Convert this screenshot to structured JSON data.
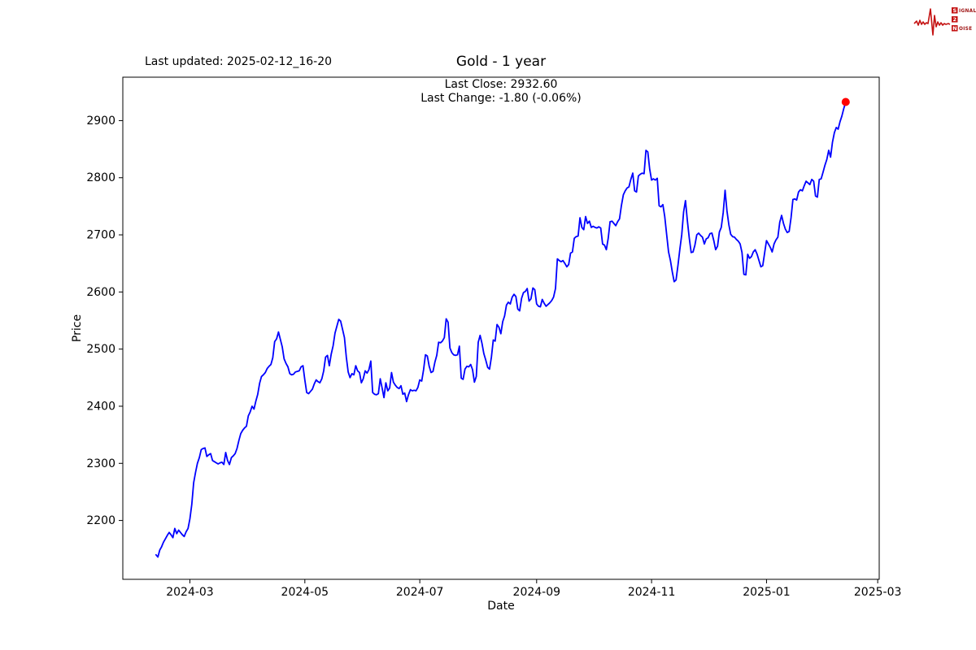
{
  "header": {
    "last_updated": "Last updated: 2025-02-12_16-20",
    "title": "Gold - 1 year",
    "last_close": "Last Close: 2932.60",
    "last_change": "Last Change: -1.80 (-0.06%)"
  },
  "logo": {
    "word_top": "SIGNAL",
    "word_mid": "2",
    "word_bottom": "NOISE",
    "accent_color": "#c41212",
    "text_color": "#9e1313"
  },
  "chart_data": {
    "type": "line",
    "title": "Gold - 1 year",
    "xlabel": "Date",
    "ylabel": "Price",
    "instrument": "Gold",
    "period": "1 year",
    "last_close": 2932.6,
    "last_change": -1.8,
    "last_change_pct": -0.06,
    "line_color": "#0000ff",
    "marker_color": "#ff0000",
    "grid": false,
    "x_start_date": "2024-02-12",
    "x_end_date": "2025-02-12",
    "frequency": "daily",
    "x_tick_days": [
      18,
      79,
      140,
      202,
      263,
      324,
      383
    ],
    "x_tick_labels": [
      "2024-03",
      "2024-05",
      "2024-07",
      "2024-09",
      "2024-11",
      "2025-01",
      "2025-03"
    ],
    "y_ticks": [
      2200,
      2300,
      2400,
      2500,
      2600,
      2700,
      2800,
      2900
    ],
    "xlim_days": [
      -17.6,
      383.8
    ],
    "ylim": [
      2097,
      2976
    ],
    "series": [
      {
        "name": "Gold price",
        "prices": [
          2140,
          2136,
          2148,
          2154,
          2162,
          2168,
          2174,
          2179,
          2175,
          2170,
          2186,
          2177,
          2183,
          2179,
          2175,
          2172,
          2180,
          2186,
          2203,
          2228,
          2266,
          2284,
          2300,
          2310,
          2324,
          2326,
          2327,
          2312,
          2315,
          2317,
          2305,
          2303,
          2301,
          2299,
          2301,
          2302,
          2298,
          2319,
          2305,
          2298,
          2310,
          2313,
          2317,
          2326,
          2340,
          2352,
          2358,
          2362,
          2365,
          2383,
          2390,
          2400,
          2395,
          2409,
          2421,
          2440,
          2452,
          2455,
          2459,
          2466,
          2470,
          2473,
          2485,
          2513,
          2518,
          2530,
          2517,
          2504,
          2483,
          2475,
          2469,
          2457,
          2455,
          2456,
          2460,
          2461,
          2462,
          2469,
          2471,
          2446,
          2424,
          2422,
          2426,
          2430,
          2439,
          2446,
          2443,
          2441,
          2448,
          2462,
          2486,
          2489,
          2471,
          2491,
          2506,
          2528,
          2540,
          2552,
          2549,
          2535,
          2520,
          2486,
          2460,
          2450,
          2457,
          2455,
          2471,
          2462,
          2459,
          2441,
          2448,
          2462,
          2458,
          2464,
          2479,
          2424,
          2421,
          2420,
          2422,
          2448,
          2432,
          2415,
          2441,
          2427,
          2432,
          2459,
          2442,
          2437,
          2433,
          2431,
          2436,
          2421,
          2423,
          2408,
          2420,
          2429,
          2427,
          2428,
          2427,
          2433,
          2446,
          2444,
          2464,
          2490,
          2488,
          2470,
          2459,
          2461,
          2477,
          2489,
          2512,
          2511,
          2514,
          2520,
          2553,
          2547,
          2502,
          2494,
          2490,
          2489,
          2490,
          2505,
          2449,
          2447,
          2465,
          2470,
          2469,
          2473,
          2464,
          2442,
          2452,
          2512,
          2524,
          2510,
          2492,
          2481,
          2468,
          2465,
          2486,
          2516,
          2514,
          2543,
          2538,
          2527,
          2548,
          2558,
          2577,
          2582,
          2579,
          2591,
          2596,
          2592,
          2570,
          2567,
          2589,
          2599,
          2601,
          2606,
          2584,
          2588,
          2607,
          2604,
          2579,
          2575,
          2574,
          2587,
          2580,
          2575,
          2578,
          2581,
          2585,
          2591,
          2606,
          2658,
          2655,
          2653,
          2655,
          2650,
          2644,
          2648,
          2668,
          2670,
          2694,
          2697,
          2698,
          2730,
          2713,
          2709,
          2732,
          2720,
          2724,
          2713,
          2715,
          2713,
          2712,
          2714,
          2712,
          2684,
          2682,
          2674,
          2694,
          2723,
          2724,
          2720,
          2716,
          2723,
          2728,
          2751,
          2770,
          2777,
          2782,
          2784,
          2797,
          2808,
          2777,
          2775,
          2803,
          2806,
          2808,
          2807,
          2848,
          2845,
          2815,
          2796,
          2798,
          2796,
          2799,
          2751,
          2749,
          2753,
          2732,
          2700,
          2670,
          2655,
          2635,
          2618,
          2621,
          2647,
          2675,
          2700,
          2740,
          2760,
          2725,
          2694,
          2669,
          2670,
          2682,
          2700,
          2703,
          2699,
          2696,
          2684,
          2693,
          2695,
          2702,
          2703,
          2690,
          2674,
          2680,
          2705,
          2713,
          2739,
          2778,
          2742,
          2718,
          2701,
          2697,
          2696,
          2692,
          2689,
          2684,
          2669,
          2631,
          2630,
          2666,
          2659,
          2662,
          2670,
          2674,
          2666,
          2655,
          2644,
          2646,
          2668,
          2690,
          2684,
          2678,
          2670,
          2684,
          2691,
          2696,
          2722,
          2734,
          2720,
          2710,
          2704,
          2706,
          2730,
          2762,
          2763,
          2761,
          2775,
          2779,
          2777,
          2786,
          2794,
          2791,
          2788,
          2797,
          2794,
          2768,
          2766,
          2797,
          2798,
          2810,
          2822,
          2832,
          2848,
          2836,
          2862,
          2879,
          2888,
          2885,
          2898,
          2908,
          2921,
          2932.6
        ]
      }
    ]
  }
}
